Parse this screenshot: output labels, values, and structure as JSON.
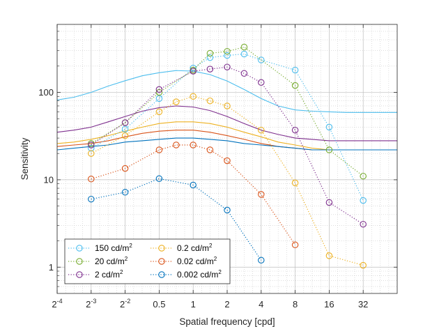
{
  "chart_data": {
    "type": "line",
    "xlabel": "Spatial frequency [cpd]",
    "ylabel": "Sensitivity",
    "x_scale": "log2",
    "y_scale": "log10",
    "xlim": [
      0.0625,
      64
    ],
    "ylim": [
      0.5,
      600
    ],
    "x_ticks": [
      {
        "value": 0.0625,
        "label": "2",
        "sup": "-4"
      },
      {
        "value": 0.125,
        "label": "2",
        "sup": "-3"
      },
      {
        "value": 0.25,
        "label": "2",
        "sup": "-2"
      },
      {
        "value": 0.5,
        "label": "0.5",
        "sup": ""
      },
      {
        "value": 1,
        "label": "1",
        "sup": ""
      },
      {
        "value": 2,
        "label": "2",
        "sup": ""
      },
      {
        "value": 4,
        "label": "4",
        "sup": ""
      },
      {
        "value": 8,
        "label": "8",
        "sup": ""
      },
      {
        "value": 16,
        "label": "16",
        "sup": ""
      },
      {
        "value": 32,
        "label": "32",
        "sup": ""
      }
    ],
    "y_ticks": [
      {
        "value": 1,
        "label": "1"
      },
      {
        "value": 10,
        "label": "10"
      },
      {
        "value": 100,
        "label": "100"
      }
    ],
    "grid": true,
    "legend_position": "bottom-left",
    "series": [
      {
        "name": "150 cd/m",
        "unit_sup": "2",
        "color": "#4DBEEE",
        "measured": {
          "x": [
            0.125,
            0.25,
            0.5,
            1,
            1.41,
            2,
            2.83,
            4,
            8,
            16,
            32
          ],
          "y": [
            23,
            38,
            85,
            190,
            250,
            265,
            275,
            235,
            180,
            40,
            5.8
          ]
        },
        "model": {
          "x": [
            0.0625,
            0.088,
            0.125,
            0.177,
            0.25,
            0.354,
            0.5,
            0.707,
            1,
            1.41,
            2,
            2.83,
            4,
            5.66,
            8,
            11.3,
            16,
            22.6,
            32,
            45.3,
            64
          ],
          "y": [
            82,
            88,
            100,
            118,
            136,
            155,
            168,
            178,
            175,
            160,
            135,
            108,
            85,
            70,
            63,
            61,
            60,
            59,
            59,
            59,
            59
          ]
        }
      },
      {
        "name": "20 cd/m",
        "unit_sup": "2",
        "color": "#77AC30",
        "measured": {
          "x": [
            0.125,
            0.25,
            0.5,
            1,
            1.41,
            2,
            2.83,
            8,
            16,
            32
          ],
          "y": [
            26,
            45,
            100,
            180,
            280,
            295,
            330,
            120,
            22,
            11
          ]
        }
      },
      {
        "name": "2 cd/m",
        "unit_sup": "2",
        "color": "#7E2F8E",
        "measured": {
          "x": [
            0.125,
            0.25,
            0.5,
            1,
            1.41,
            2,
            2.83,
            4,
            8,
            16,
            32
          ],
          "y": [
            25,
            45,
            108,
            175,
            185,
            195,
            165,
            130,
            37,
            5.5,
            3.1
          ]
        },
        "model": {
          "x": [
            0.0625,
            0.088,
            0.125,
            0.177,
            0.25,
            0.354,
            0.5,
            0.707,
            1,
            1.41,
            2,
            2.83,
            4,
            5.66,
            8,
            11.3,
            16,
            22.6,
            32,
            45.3,
            64
          ],
          "y": [
            35,
            37,
            40,
            46,
            53,
            61,
            67,
            70,
            68,
            62,
            53,
            44,
            37,
            33,
            30,
            29,
            28,
            28,
            28,
            28,
            28
          ]
        }
      },
      {
        "name": "0.2 cd/m",
        "unit_sup": "2",
        "color": "#EDB120",
        "measured": {
          "x": [
            0.125,
            0.25,
            0.5,
            0.707,
            1,
            1.41,
            2,
            4,
            8,
            16,
            32
          ],
          "y": [
            20,
            32,
            60,
            78,
            90,
            80,
            70,
            37,
            9.2,
            1.35,
            1.05
          ]
        },
        "model": {
          "x": [
            0.0625,
            0.088,
            0.125,
            0.177,
            0.25,
            0.354,
            0.5,
            0.707,
            1,
            1.41,
            2,
            2.83,
            4,
            5.66,
            8,
            11.3,
            16,
            22.6,
            32,
            45.3,
            64
          ],
          "y": [
            26,
            27,
            29,
            32,
            36,
            40,
            44,
            46,
            46,
            44,
            40,
            35,
            31,
            27,
            25,
            23,
            22,
            22,
            22,
            22,
            22
          ]
        }
      },
      {
        "name": "0.02 cd/m",
        "unit_sup": "2",
        "color": "#D95319",
        "measured": {
          "x": [
            0.125,
            0.25,
            0.5,
            0.707,
            1,
            1.41,
            2,
            4,
            8
          ],
          "y": [
            10.2,
            13.5,
            22,
            25,
            25,
            22,
            16.5,
            6.8,
            1.8
          ]
        },
        "model": {
          "x": [
            0.0625,
            0.088,
            0.125,
            0.177,
            0.25,
            0.354,
            0.5,
            0.707,
            1,
            1.41,
            2,
            2.83,
            4,
            5.66,
            8,
            11.3,
            16,
            22.6,
            32,
            45.3,
            64
          ],
          "y": [
            24,
            25,
            26,
            28,
            31,
            34,
            36,
            37,
            37,
            35,
            32,
            29,
            26,
            24,
            23,
            22,
            22,
            22,
            22,
            22,
            22
          ]
        }
      },
      {
        "name": "0.002 cd/m",
        "unit_sup": "2",
        "color": "#0072BD",
        "measured": {
          "x": [
            0.125,
            0.25,
            0.5,
            1,
            2,
            4
          ],
          "y": [
            6,
            7.2,
            10.3,
            8.7,
            4.5,
            1.2
          ]
        },
        "model": {
          "x": [
            0.0625,
            0.088,
            0.125,
            0.177,
            0.25,
            0.354,
            0.5,
            0.707,
            1,
            1.41,
            2,
            2.83,
            4,
            5.66,
            8,
            11.3,
            16,
            22.6,
            32,
            45.3,
            64
          ],
          "y": [
            22,
            23,
            24,
            25,
            27,
            28,
            29,
            30,
            30,
            29,
            28,
            26,
            25,
            24,
            23,
            22,
            22,
            22,
            22,
            22,
            22
          ]
        }
      }
    ]
  }
}
